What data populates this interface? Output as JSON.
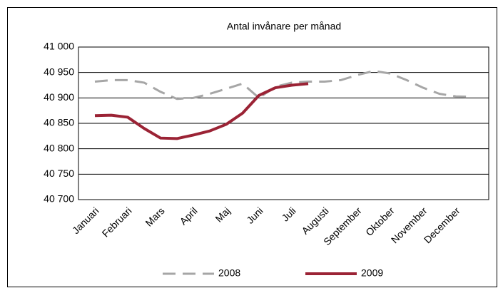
{
  "chart_data": {
    "type": "line",
    "title": "Antal invånare per månad",
    "categories": [
      "Januari",
      null,
      "Februari",
      null,
      "Mars",
      null,
      "April",
      null,
      "Maj",
      null,
      "Juni",
      null,
      "Juli",
      null,
      "Augusti",
      null,
      "September",
      null,
      "Oktober",
      null,
      "November",
      null,
      "December",
      null
    ],
    "series": [
      {
        "name": "2008",
        "color": "#a6a6a6",
        "dash": true,
        "values": [
          40932,
          40935,
          40935,
          40930,
          40912,
          40898,
          40900,
          40908,
          40918,
          40928,
          40900,
          40922,
          40930,
          40932,
          40932,
          40935,
          40945,
          40953,
          40948,
          40935,
          40920,
          40908,
          40903,
          40902
        ]
      },
      {
        "name": "2009",
        "color": "#9b2335",
        "dash": false,
        "values": [
          40865,
          40866,
          40862,
          40840,
          40821,
          40820,
          40827,
          40835,
          40848,
          40870,
          40905,
          40920,
          40925,
          40928,
          null,
          null,
          null,
          null,
          null,
          null,
          null,
          null,
          null,
          null
        ]
      }
    ],
    "ylim": [
      40700,
      41000
    ],
    "yticks": [
      {
        "value": 40700,
        "label": "40 700"
      },
      {
        "value": 40750,
        "label": "40 750"
      },
      {
        "value": 40800,
        "label": "40 800"
      },
      {
        "value": 40850,
        "label": "40 850"
      },
      {
        "value": 40900,
        "label": "40 900"
      },
      {
        "value": 40950,
        "label": "40 950"
      },
      {
        "value": 41000,
        "label": "41 000"
      }
    ],
    "grid": true,
    "legend": "bottom"
  }
}
